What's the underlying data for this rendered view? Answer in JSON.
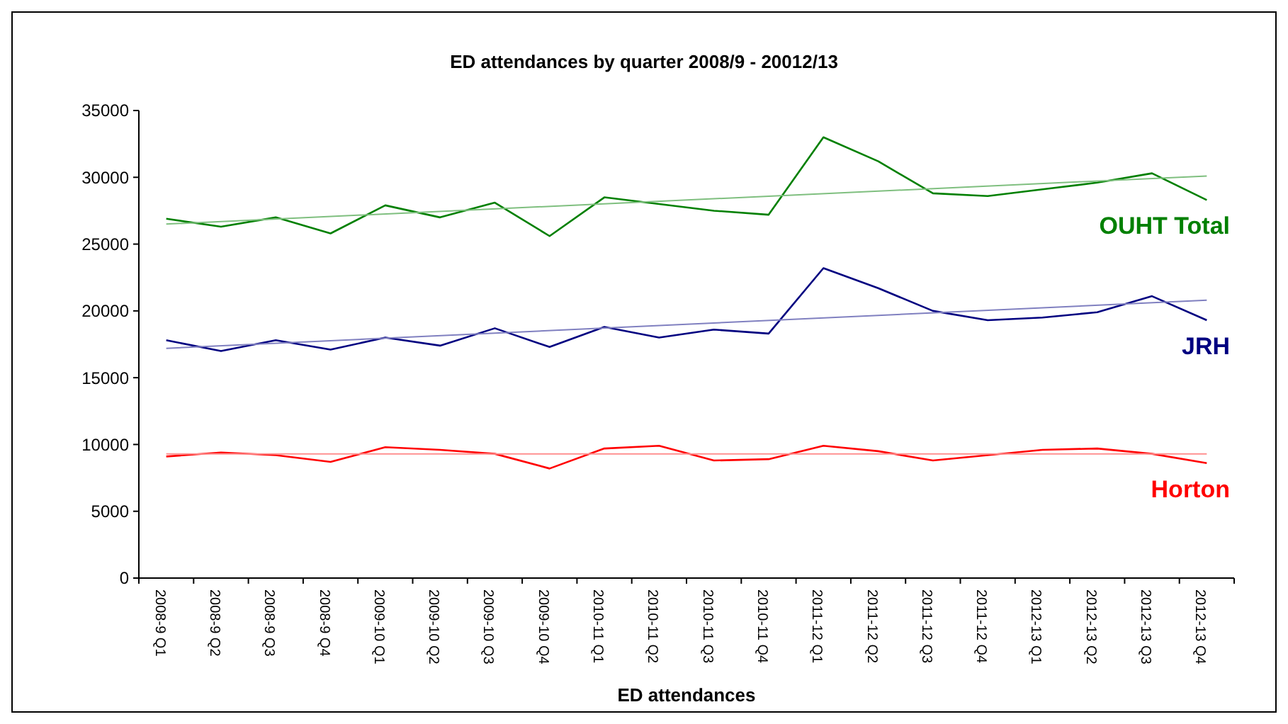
{
  "chart_data": {
    "type": "line",
    "title": "ED attendances by quarter 2008/9 - 20012/13",
    "xlabel": "ED attendances",
    "categories": [
      "2008-9 Q1",
      "2008-9 Q2",
      "2008-9 Q3",
      "2008-9 Q4",
      "2009-10 Q1",
      "2009-10 Q2",
      "2009-10 Q3",
      "2009-10 Q4",
      "2010-11 Q1",
      "2010-11 Q2",
      "2010-11 Q3",
      "2010-11 Q4",
      "2011-12 Q1",
      "2011-12 Q2",
      "2011-12 Q3",
      "2011-12 Q4",
      "2012-13 Q1",
      "2012-13 Q2",
      "2012-13 Q3",
      "2012-13 Q4"
    ],
    "series": [
      {
        "name": "OUHT Total",
        "color": "#008000",
        "values": [
          26900,
          26300,
          27000,
          25800,
          27900,
          27000,
          28100,
          25600,
          28500,
          28000,
          27500,
          27200,
          33000,
          31200,
          28800,
          28600,
          29100,
          29600,
          30300,
          28300
        ]
      },
      {
        "name": "JRH",
        "color": "#000080",
        "values": [
          17800,
          17000,
          17800,
          17100,
          18000,
          17400,
          18700,
          17300,
          18800,
          18000,
          18600,
          18300,
          23200,
          21700,
          20000,
          19300,
          19500,
          19900,
          21100,
          19300
        ]
      },
      {
        "name": "Horton",
        "color": "#ff0000",
        "values": [
          9100,
          9400,
          9200,
          8700,
          9800,
          9600,
          9300,
          8200,
          9700,
          9900,
          8800,
          8900,
          9900,
          9500,
          8800,
          9200,
          9600,
          9700,
          9300,
          8600
        ]
      },
      {
        "type": "line",
        "color": "#7fbf7f",
        "x": [
          "2008-9 Q1",
          "2012-13 Q4"
        ],
        "values": [
          26500,
          30100
        ]
      },
      {
        "type": "line",
        "color": "#8080c0",
        "x": [
          "2008-9 Q1",
          "2012-13 Q4"
        ],
        "values": [
          17200,
          20800
        ]
      },
      {
        "type": "line",
        "color": "#ff9090",
        "x": [
          "2008-9 Q1",
          "2012-13 Q4"
        ],
        "values": [
          9300,
          9300
        ]
      }
    ],
    "ylim": [
      0,
      35000
    ],
    "yticks": [
      0,
      5000,
      10000,
      15000,
      20000,
      25000,
      30000,
      35000
    ],
    "grid": false,
    "marker": "none",
    "line_style": "solid"
  }
}
